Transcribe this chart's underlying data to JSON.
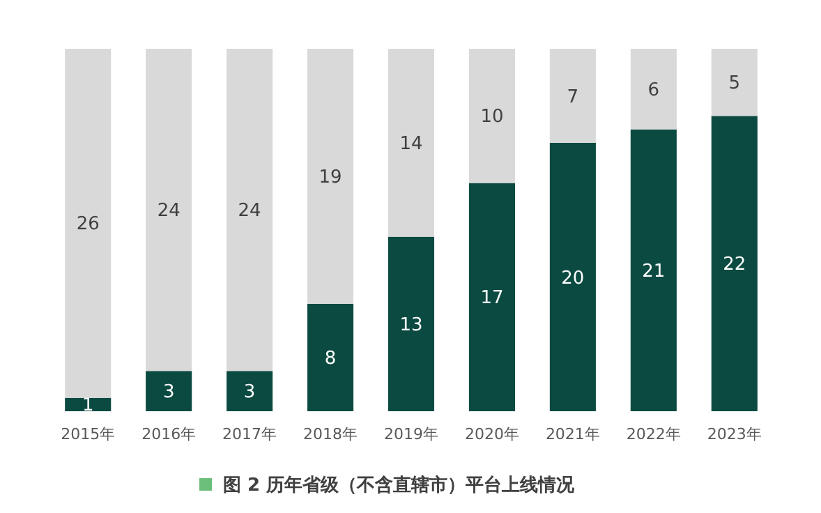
{
  "chart_data": {
    "type": "bar",
    "title": "图 2  历年省级（不含直辖市）平台上线情况",
    "stacked": true,
    "data_labels": true,
    "categories": [
      "2015年",
      "2016年",
      "2017年",
      "2018年",
      "2019年",
      "2020年",
      "2021年",
      "2022年",
      "2023年"
    ],
    "series": [
      {
        "color": "#0b4a41",
        "values": [
          1,
          3,
          3,
          8,
          13,
          17,
          20,
          21,
          22
        ]
      },
      {
        "color": "#d9d9d9",
        "values": [
          26,
          24,
          24,
          19,
          14,
          10,
          7,
          6,
          5
        ]
      }
    ]
  }
}
